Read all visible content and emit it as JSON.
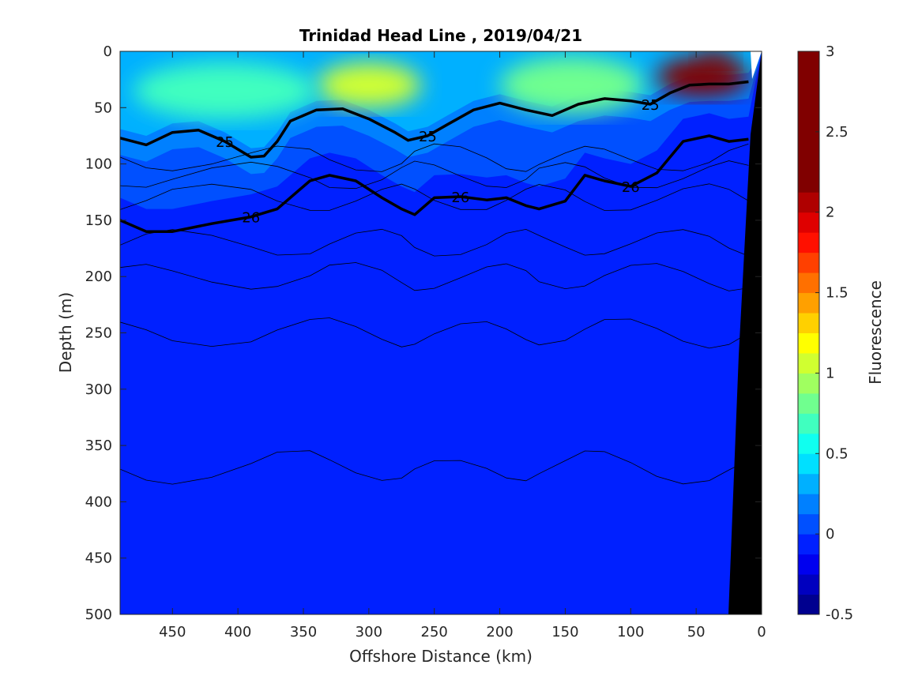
{
  "chart_data": {
    "type": "heatmap",
    "title": "Trinidad Head Line , 2019/04/21",
    "xlabel": "Offshore Distance (km)",
    "ylabel": "Depth (m)",
    "xlim": [
      490,
      0
    ],
    "ylim": [
      0,
      500
    ],
    "x_ticks": [
      "450",
      "400",
      "350",
      "300",
      "250",
      "200",
      "150",
      "100",
      "50",
      "0"
    ],
    "y_ticks": [
      "0",
      "50",
      "100",
      "150",
      "200",
      "250",
      "300",
      "350",
      "400",
      "450",
      "500"
    ],
    "colorbar": {
      "label": "Fluorescence",
      "range": [
        -0.5,
        3
      ],
      "ticks": [
        "-0.5",
        "0",
        "0.5",
        "1",
        "1.5",
        "2",
        "2.5",
        "3"
      ],
      "levels": [
        -0.5,
        -0.375,
        -0.25,
        -0.125,
        0,
        0.125,
        0.25,
        0.375,
        0.5,
        0.625,
        0.75,
        0.875,
        1,
        1.125,
        1.25,
        1.375,
        1.5,
        1.625,
        1.75,
        1.875,
        2,
        2.125,
        2.25,
        2.375,
        2.5,
        2.625,
        2.75,
        2.875,
        3
      ],
      "colors": [
        "#00008f",
        "#0000bf",
        "#0000ef",
        "#0020ff",
        "#0050ff",
        "#0080ff",
        "#00b0ff",
        "#00e0ff",
        "#10ffef",
        "#40ffbf",
        "#70ff8f",
        "#a0ff60",
        "#d0ff30",
        "#ffff00",
        "#ffd000",
        "#ffa000",
        "#ff7000",
        "#ff4000",
        "#ff1000",
        "#df0000",
        "#af0000",
        "#800000"
      ]
    },
    "density_contours": [
      {
        "label": "25",
        "depths_at_km": [
          [
            490,
            77
          ],
          [
            470,
            83
          ],
          [
            450,
            72
          ],
          [
            430,
            70
          ],
          [
            410,
            80
          ],
          [
            390,
            94
          ],
          [
            380,
            93
          ],
          [
            370,
            80
          ],
          [
            360,
            62
          ],
          [
            340,
            52
          ],
          [
            320,
            51
          ],
          [
            300,
            60
          ],
          [
            280,
            72
          ],
          [
            270,
            79
          ],
          [
            255,
            75
          ],
          [
            240,
            65
          ],
          [
            220,
            52
          ],
          [
            200,
            46
          ],
          [
            180,
            52
          ],
          [
            160,
            57
          ],
          [
            140,
            47
          ],
          [
            120,
            42
          ],
          [
            100,
            44
          ],
          [
            85,
            47
          ],
          [
            70,
            37
          ],
          [
            55,
            30
          ],
          [
            40,
            29
          ],
          [
            25,
            29
          ],
          [
            10,
            27
          ]
        ]
      },
      {
        "label": "26",
        "depths_at_km": [
          [
            490,
            150
          ],
          [
            470,
            160
          ],
          [
            450,
            160
          ],
          [
            420,
            153
          ],
          [
            390,
            147
          ],
          [
            370,
            140
          ],
          [
            345,
            115
          ],
          [
            330,
            110
          ],
          [
            310,
            115
          ],
          [
            290,
            130
          ],
          [
            275,
            140
          ],
          [
            265,
            145
          ],
          [
            250,
            130
          ],
          [
            230,
            129
          ],
          [
            210,
            132
          ],
          [
            195,
            130
          ],
          [
            180,
            137
          ],
          [
            170,
            140
          ],
          [
            150,
            133
          ],
          [
            135,
            110
          ],
          [
            120,
            115
          ],
          [
            100,
            120
          ],
          [
            80,
            108
          ],
          [
            60,
            80
          ],
          [
            40,
            75
          ],
          [
            25,
            80
          ],
          [
            10,
            78
          ]
        ]
      }
    ],
    "thin_contour_depths": [
      95,
      110,
      130,
      170,
      200,
      250,
      370
    ],
    "surface_patches": [
      {
        "km": [
          260,
          340
        ],
        "depth": [
          10,
          50
        ],
        "value": 1.1
      },
      {
        "km": [
          90,
          200
        ],
        "depth": [
          5,
          55
        ],
        "value": 0.85
      },
      {
        "km": [
          340,
          480
        ],
        "depth": [
          10,
          60
        ],
        "value": 0.7
      },
      {
        "km": [
          10,
          80
        ],
        "depth": [
          5,
          40
        ],
        "value": 2.2
      },
      {
        "km": [
          20,
          50
        ],
        "depth": [
          3,
          15
        ],
        "value": 2.8
      }
    ]
  }
}
